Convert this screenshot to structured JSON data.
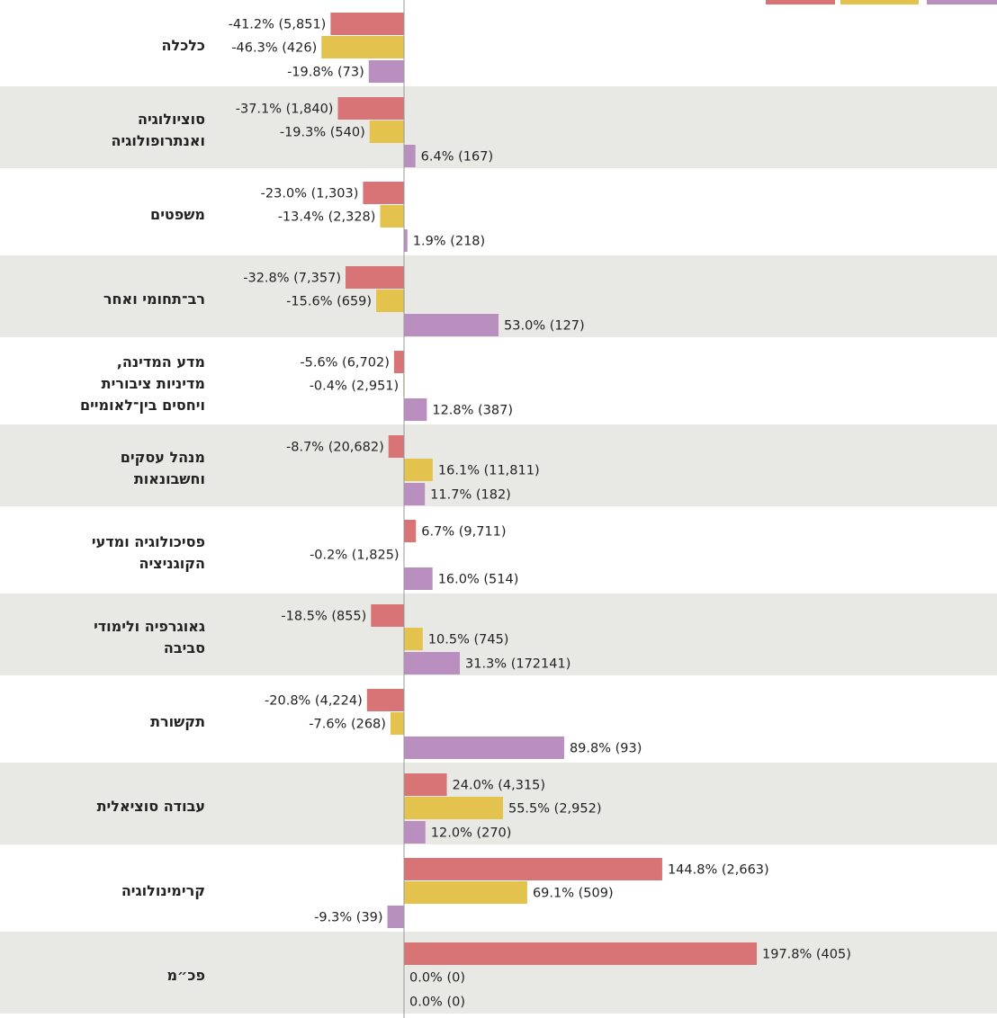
{
  "chart_data": {
    "type": "bar",
    "orientation": "horizontal",
    "categories": [
      "כלכלה",
      "סוציולוגיה\nואנתרופולוגיה",
      "משפטים",
      "רב־תחומי ואחר",
      "מדע המדינה,\nמדיניות ציבורית\nויחסים בין־לאומיים",
      "מנהל עסקים\nוחשבונאות",
      "פסיכולוגיה ומדעי\nהקוגניציה",
      "גאוגרפיה ולימודי\nסביבה",
      "תקשורת",
      "עבודה סוציאלית",
      "קרימינולוגיה",
      "פכ״מ"
    ],
    "series": [
      {
        "color": "#d97476",
        "values": [
          -41.2,
          -37.1,
          -23.0,
          -32.8,
          -5.6,
          -8.7,
          6.7,
          -18.5,
          -20.8,
          24.0,
          144.8,
          197.8
        ],
        "value_labels": [
          "-41.2% (5,851)",
          "-37.1% (1,840)",
          "-23.0% (1,303)",
          "-32.8% (7,357)",
          "-5.6% (6,702)",
          "-8.7% (20,682)",
          "6.7% (9,711)",
          "-18.5% (855)",
          "-20.8% (4,224)",
          "24.0% (4,315)",
          "144.8% (2,663)",
          "197.8% (405)"
        ]
      },
      {
        "color": "#e3c24d",
        "values": [
          -46.3,
          -19.3,
          -13.4,
          -15.6,
          -0.4,
          16.1,
          -0.2,
          10.5,
          -7.6,
          55.5,
          69.1,
          0.0
        ],
        "value_labels": [
          "-46.3% (426)",
          "-19.3% (540)",
          "-13.4% (2,328)",
          "-15.6% (659)",
          "-0.4% (2,951)",
          "16.1% (11,811)",
          "-0.2% (1,825)",
          "10.5% (745)",
          "-7.6% (268)",
          "55.5% (2,952)",
          "69.1% (509)",
          "0.0% (0)"
        ]
      },
      {
        "color": "#b98fbf",
        "values": [
          -19.8,
          6.4,
          1.9,
          53.0,
          12.8,
          11.7,
          16.0,
          31.3,
          89.8,
          12.0,
          -9.3,
          0.0
        ],
        "value_labels": [
          "-19.8% (73)",
          "6.4% (167)",
          "1.9% (218)",
          "53.0% (127)",
          "12.8% (387)",
          "11.7% (182)",
          "16.0% (514)",
          "31.3% (172141)",
          "89.8% (93)",
          "12.0% (270)",
          "-9.3% (39)",
          "0.0% (0)"
        ]
      }
    ]
  }
}
